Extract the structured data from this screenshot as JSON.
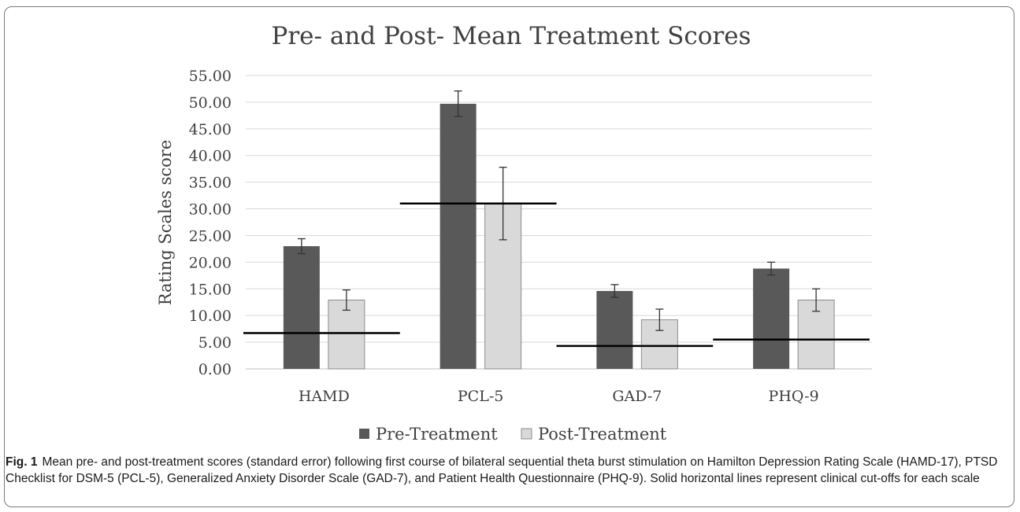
{
  "chart_data": {
    "type": "bar",
    "title": "Pre- and Post- Mean Treatment Scores",
    "xlabel": "",
    "ylabel": "Rating Scales score",
    "ylim": [
      0,
      55
    ],
    "yticks": [
      "0.00",
      "5.00",
      "10.00",
      "15.00",
      "20.00",
      "25.00",
      "30.00",
      "35.00",
      "40.00",
      "45.00",
      "50.00",
      "55.00"
    ],
    "categories": [
      "HAMD",
      "PCL-5",
      "GAD-7",
      "PHQ-9"
    ],
    "series": [
      {
        "name": "Pre-Treatment",
        "color": "#595959",
        "values": [
          23.0,
          49.7,
          14.6,
          18.8
        ],
        "errors": [
          1.4,
          2.4,
          1.2,
          1.2
        ]
      },
      {
        "name": "Post-Treatment",
        "color": "#d9d9d9",
        "values": [
          12.9,
          31.0,
          9.2,
          12.9
        ],
        "errors": [
          1.9,
          6.8,
          2.0,
          2.1
        ]
      }
    ],
    "cutoffs": [
      6.7,
      31.0,
      4.3,
      5.5
    ],
    "grid": true,
    "legend": "bottom"
  },
  "caption": {
    "label": "Fig. 1",
    "text": "Mean pre- and post-treatment scores (standard error) following first course of bilateral sequential theta burst stimulation on Hamilton Depression Rating Scale (HAMD-17), PTSD Checklist for DSM-5 (PCL-5), Generalized Anxiety Disorder Scale (GAD-7), and Patient Health Questionnaire (PHQ-9). Solid horizontal lines represent clinical cut-offs for each scale"
  }
}
